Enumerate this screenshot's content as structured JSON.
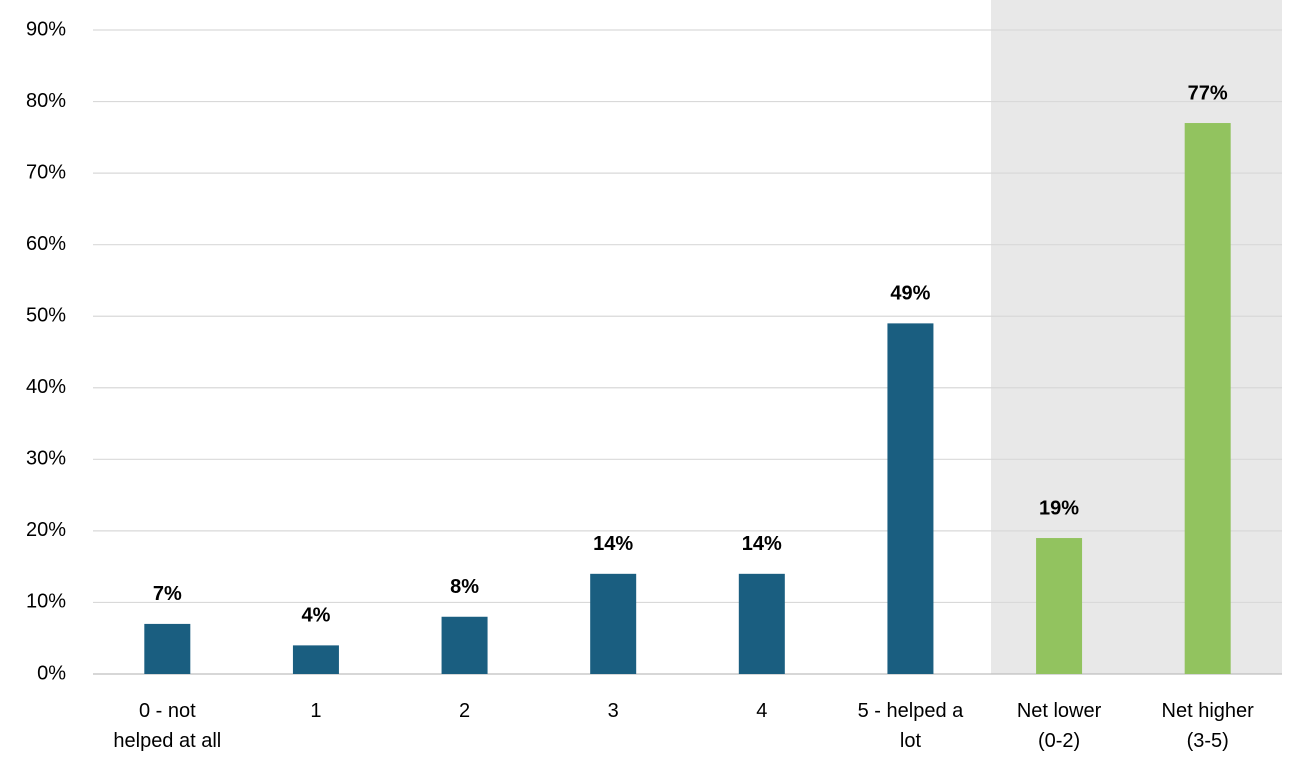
{
  "chart_data": {
    "type": "bar",
    "categories": [
      "0 - not\nhelped at all",
      "1",
      "2",
      "3",
      "4",
      "5 - helped a\nlot",
      "Net lower\n(0-2)",
      "Net higher\n(3-5)"
    ],
    "values": [
      7,
      4,
      8,
      14,
      14,
      49,
      19,
      77
    ],
    "value_labels": [
      "7%",
      "4%",
      "8%",
      "14%",
      "14%",
      "49%",
      "19%",
      "77%"
    ],
    "colors": [
      "#1a5e80",
      "#1a5e80",
      "#1a5e80",
      "#1a5e80",
      "#1a5e80",
      "#1a5e80",
      "#92c35f",
      "#92c35f"
    ],
    "ylim": [
      0,
      90
    ],
    "yticks": [
      {
        "value": 0,
        "label": "0%"
      },
      {
        "value": 10,
        "label": "10%"
      },
      {
        "value": 20,
        "label": "20%"
      },
      {
        "value": 30,
        "label": "30%"
      },
      {
        "value": 40,
        "label": "40%"
      },
      {
        "value": 50,
        "label": "50%"
      },
      {
        "value": 60,
        "label": "60%"
      },
      {
        "value": 70,
        "label": "70%"
      },
      {
        "value": 80,
        "label": "80%"
      },
      {
        "value": 90,
        "label": "90%"
      }
    ],
    "grid": true
  }
}
